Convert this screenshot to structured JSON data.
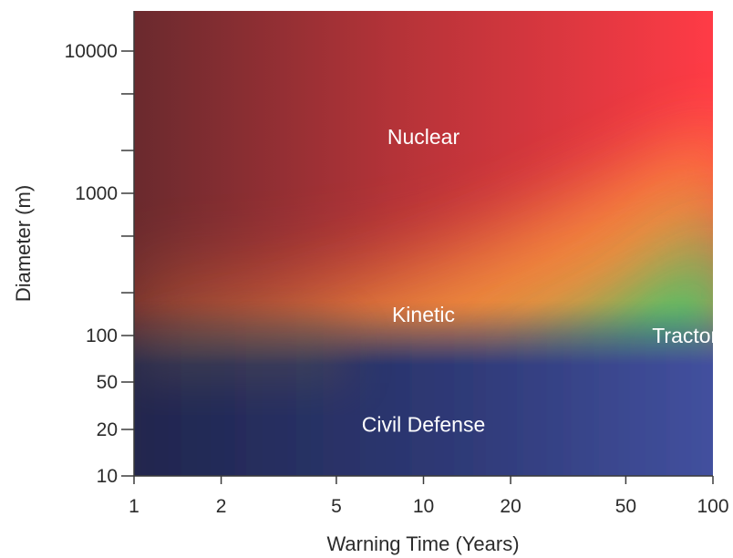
{
  "chart_data": {
    "type": "heatmap",
    "xlabel": "Warning Time (Years)",
    "ylabel": "Diameter (m)",
    "x_scale": "log",
    "y_scale": "log",
    "xlim": [
      1,
      100
    ],
    "ylim": [
      10,
      20000
    ],
    "x_ticks": [
      1,
      2,
      5,
      10,
      20,
      50,
      100
    ],
    "x_tick_labels": [
      "1",
      "2",
      "5",
      "10",
      "20",
      "50",
      "100"
    ],
    "y_ticks": [
      10,
      20,
      50,
      100,
      1000,
      10000
    ],
    "y_tick_labels": [
      "10",
      "20",
      "50",
      "100",
      "1000",
      "10000"
    ],
    "y_minor_ticks": [
      200,
      500,
      2000,
      5000
    ],
    "regions": [
      {
        "label": "Nuclear",
        "x": 10,
        "y": 2500,
        "color": "#e63a3a"
      },
      {
        "label": "Kinetic",
        "x": 10,
        "y": 140,
        "color": "#f0a040"
      },
      {
        "label": "Tractor",
        "x": 80,
        "y": 100,
        "color": "#2ecc71"
      },
      {
        "label": "Civil Defense",
        "x": 10,
        "y": 22,
        "color": "#3a4a9a"
      }
    ],
    "grid": false,
    "legend": "none"
  }
}
